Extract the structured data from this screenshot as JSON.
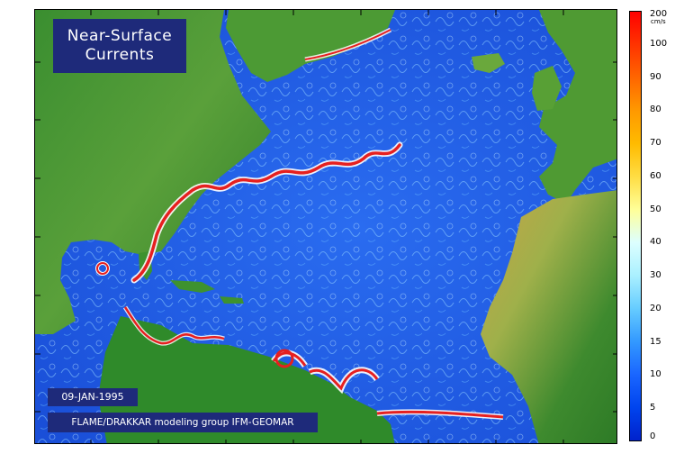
{
  "map": {
    "title_line1": "Near-Surface",
    "title_line2": "Currents",
    "date": "09-JAN-1995",
    "credit": "FLAME/DRAKKAR modeling group IFM-GEOMAR"
  },
  "colorbar": {
    "unit": "cm/s",
    "labels": [
      "200",
      "100",
      "90",
      "80",
      "70",
      "60",
      "50",
      "40",
      "30",
      "20",
      "15",
      "10",
      "5",
      "0"
    ],
    "colors": [
      "#ff0000",
      "#ff3300",
      "#ff6600",
      "#ff9900",
      "#ffbb00",
      "#ffdd44",
      "#ffff99",
      "#ddffff",
      "#aaf0ff",
      "#66ccff",
      "#3399ff",
      "#1a66ff",
      "#0044ee",
      "#0022cc"
    ]
  },
  "colors": {
    "ocean": "#1f5ce6",
    "land_low": "#2f8a2a",
    "land_high": "#b89a3a",
    "jet_core": "#e62020",
    "jet_edge": "#ffffff",
    "label_box": "#1e2a7a"
  }
}
